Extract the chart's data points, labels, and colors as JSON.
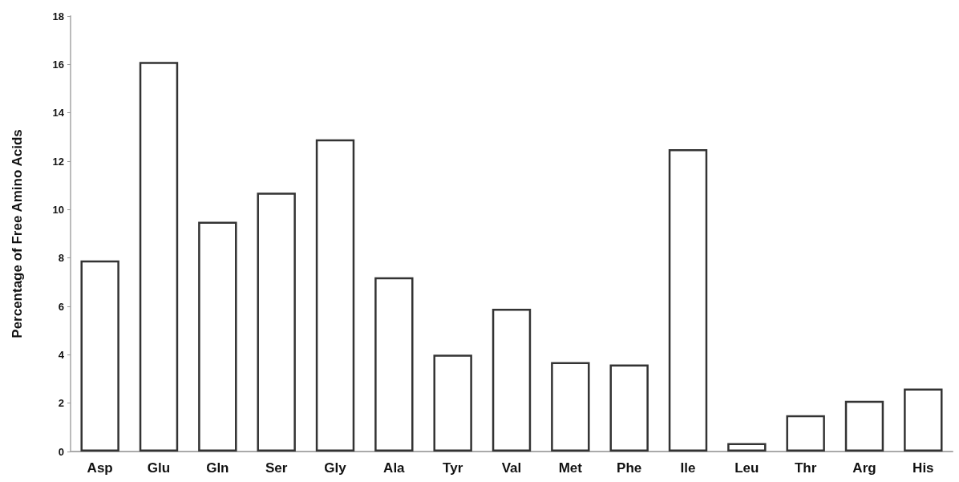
{
  "chart_data": {
    "type": "bar",
    "ylabel": "Percentage of Free Amino Acids",
    "categories": [
      "Asp",
      "Glu",
      "Gln",
      "Ser",
      "Gly",
      "Ala",
      "Tyr",
      "Val",
      "Met",
      "Phe",
      "Ile",
      "Leu",
      "Thr",
      "Arg",
      "His"
    ],
    "values": [
      7.9,
      16.1,
      9.5,
      10.7,
      12.9,
      7.2,
      4.0,
      5.9,
      3.7,
      3.6,
      12.5,
      0.35,
      1.5,
      2.1,
      2.6
    ],
    "color": "#ffffff",
    "ylim": [
      0,
      18
    ],
    "yticks": [
      0,
      2,
      4,
      6,
      8,
      10,
      12,
      14,
      16,
      18
    ],
    "grid": false
  }
}
